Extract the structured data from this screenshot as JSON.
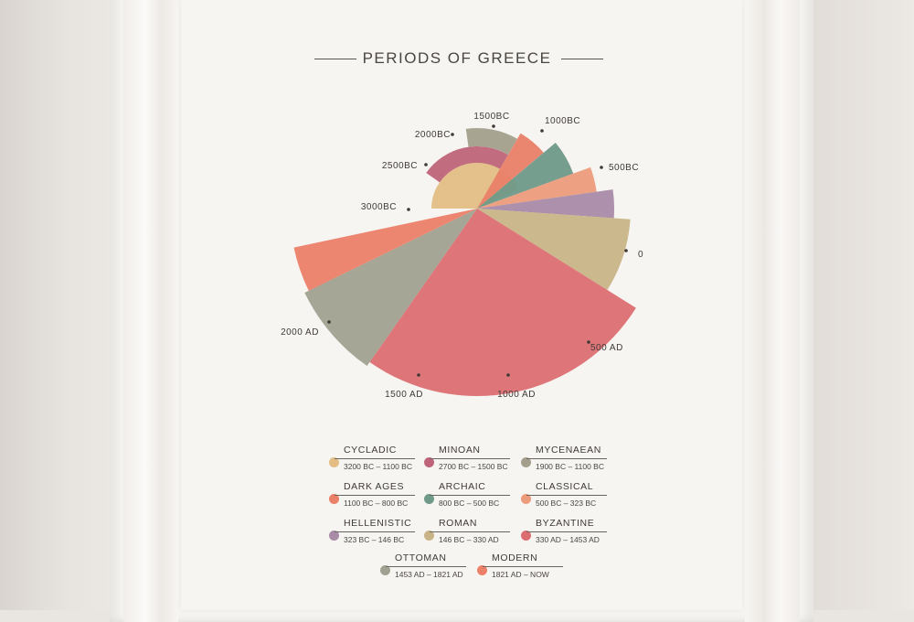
{
  "poster": {
    "title": "PERIODS OF GREECE"
  },
  "chart_data": {
    "type": "pie",
    "timeline_labels": [
      "3000BC",
      "2500BC",
      "2000BC",
      "1500BC",
      "1000BC",
      "500BC",
      "0",
      "500 AD",
      "1000 AD",
      "1500 AD",
      "2000 AD"
    ],
    "series": [
      {
        "name": "CYCLADIC",
        "range": "3200 BC – 1100 BC",
        "start": -3200,
        "end": -1100,
        "color": "#e3bd84"
      },
      {
        "name": "MINOAN",
        "range": "2700 BC – 1500 BC",
        "start": -2700,
        "end": -1500,
        "color": "#bf6478"
      },
      {
        "name": "MYCENAEAN",
        "range": "1900 BC – 1100 BC",
        "start": -1900,
        "end": -1100,
        "color": "#a39f8c"
      },
      {
        "name": "DARK AGES",
        "range": "1100 BC – 800 BC",
        "start": -1100,
        "end": -800,
        "color": "#e98067"
      },
      {
        "name": "ARCHAIC",
        "range": "800 BC – 500 BC",
        "start": -800,
        "end": -500,
        "color": "#6f9988"
      },
      {
        "name": "CLASSICAL",
        "range": "500 BC – 323 BC",
        "start": -500,
        "end": -323,
        "color": "#ec9c7b"
      },
      {
        "name": "HELLENISTIC",
        "range": "323 BC – 146 BC",
        "start": -323,
        "end": -146,
        "color": "#a98aa7"
      },
      {
        "name": "ROMAN",
        "range": "146 BC – 330 AD",
        "start": -146,
        "end": 330,
        "color": "#c8b486"
      },
      {
        "name": "BYZANTINE",
        "range": "330 AD – 1453 AD",
        "start": 330,
        "end": 1453,
        "color": "#dc6e72"
      },
      {
        "name": "OTTOMAN",
        "range": "1453 AD – 1821 AD",
        "start": 1453,
        "end": 1821,
        "color": "#a0a190"
      },
      {
        "name": "MODERN",
        "range": "1821 AD – NOW",
        "start": 1821,
        "end": 2000,
        "color": "#ec8068"
      }
    ]
  }
}
